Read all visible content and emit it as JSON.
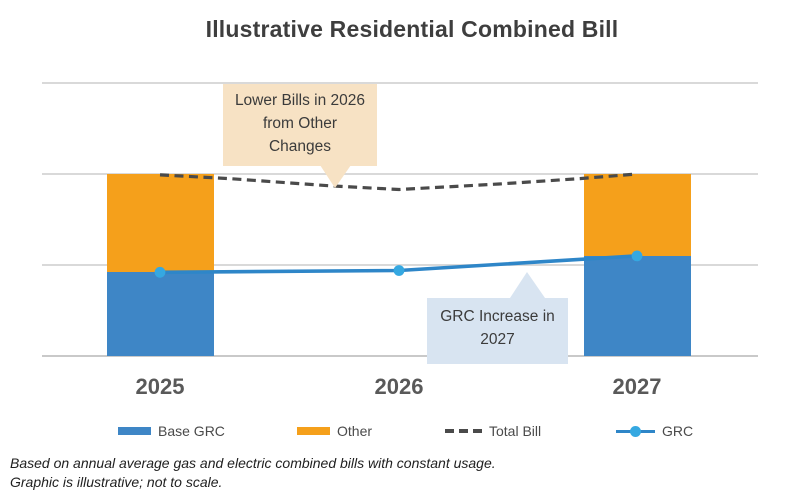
{
  "title": "Illustrative Residential Combined Bill",
  "callouts": {
    "lower_bills": {
      "line1": "Lower Bills in 2026",
      "line2": "from Other",
      "line3": "Changes"
    },
    "grc_increase": {
      "line1": "GRC Increase in",
      "line2": "2027"
    }
  },
  "footnotes": {
    "line1": "Based on annual average gas and electric combined bills with constant usage.",
    "line2": "Graphic is illustrative; not to scale."
  },
  "legend": {
    "items": [
      {
        "label": "Base GRC",
        "swatch": "rect",
        "color": "#3e86c6"
      },
      {
        "label": "Other",
        "swatch": "rect",
        "color": "#f5a01b"
      },
      {
        "label": "Total Bill",
        "swatch": "dash",
        "color": "#4a4a4a"
      },
      {
        "label": "GRC",
        "swatch": "line-dot",
        "color": "#2e86c8",
        "dot_color": "#35a8e1"
      }
    ]
  },
  "colors": {
    "base_grc_bar": "#3e86c6",
    "other_bar": "#f5a01b",
    "total_bill_line": "#4a4a4a",
    "grc_line": "#2e86c8",
    "grc_marker": "#35a8e1",
    "callout_tan": "#f7e2c4",
    "callout_blue": "#d8e4f1",
    "gridline": "#d9d9d9"
  },
  "chart_data": {
    "type": "combo: stacked bar + line",
    "title": "Illustrative Residential Combined Bill",
    "categories": [
      "2025",
      "2026",
      "2027"
    ],
    "xlabel": "",
    "ylabel": "",
    "units": "illustrative relative units (y-axis unlabeled; gridline spacing = 1 unit; graphic not to scale)",
    "ylim": [
      0,
      3.2
    ],
    "gridlines": [
      0,
      1,
      2,
      3
    ],
    "grid": "horizontal only",
    "legend_position": "bottom",
    "series": [
      {
        "name": "Base GRC",
        "type": "bar",
        "stack": "bill",
        "color": "#3e86c6",
        "values": [
          0.92,
          null,
          1.1
        ]
      },
      {
        "name": "Other",
        "type": "bar",
        "stack": "bill",
        "color": "#f5a01b",
        "values": [
          1.08,
          null,
          0.9
        ]
      },
      {
        "name": "Total Bill",
        "type": "line",
        "style": "dashed",
        "color": "#4a4a4a",
        "values": [
          2.0,
          1.83,
          2.0
        ],
        "shape_points": [
          {
            "t": 0.0,
            "v": 1.99
          },
          {
            "t": 0.29,
            "v": 1.95
          },
          {
            "t": 0.71,
            "v": 1.87
          },
          {
            "t": 1.0,
            "v": 1.83
          },
          {
            "t": 1.42,
            "v": 1.89
          },
          {
            "t": 1.76,
            "v": 1.95
          },
          {
            "t": 2.0,
            "v": 2.0
          }
        ]
      },
      {
        "name": "GRC",
        "type": "line",
        "style": "solid with circle markers",
        "color": "#2e86c8",
        "marker_color": "#35a8e1",
        "values": [
          0.92,
          0.94,
          1.1
        ]
      }
    ],
    "annotations": [
      {
        "text": "Lower Bills in 2026 from Other Changes",
        "points_to": "Total Bill line dip near 2026"
      },
      {
        "text": "GRC Increase in 2027",
        "points_to": "GRC line rise toward 2027"
      }
    ]
  }
}
